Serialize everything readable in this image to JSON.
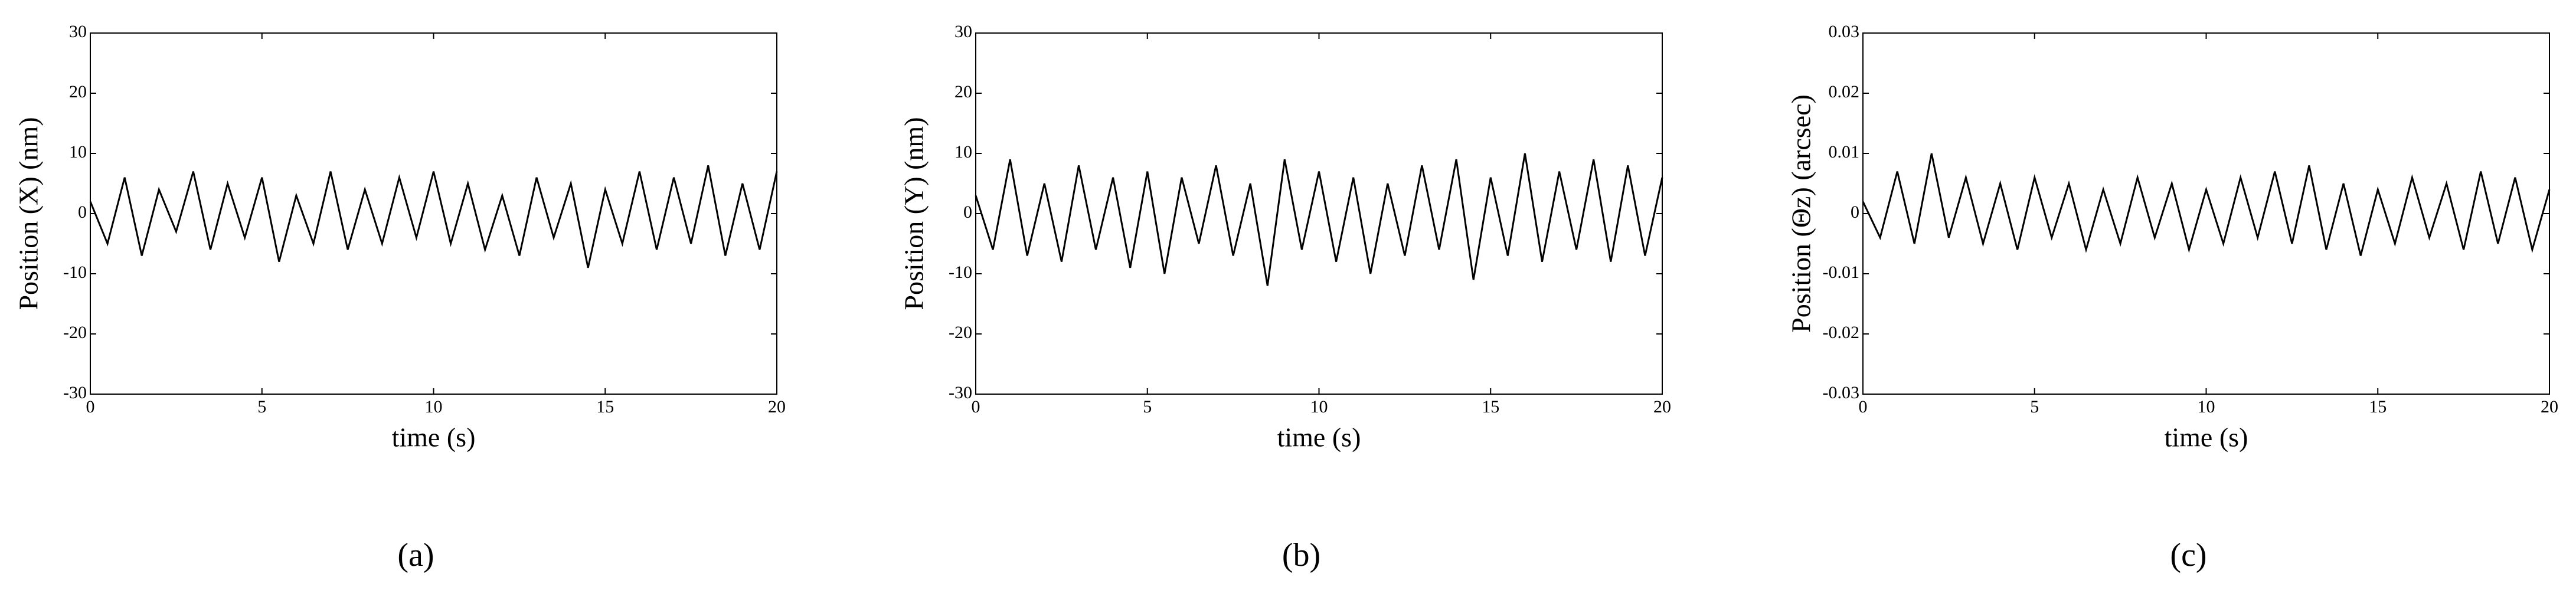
{
  "chart_data": [
    {
      "type": "line",
      "label": "(a)",
      "xlabel": "time (s)",
      "ylabel": "Position (X) (nm)",
      "color": "#000000",
      "xlim": [
        0,
        20
      ],
      "xticks": [
        0,
        5,
        10,
        15,
        20
      ],
      "ylim": [
        -30,
        30
      ],
      "yticks": [
        -30,
        -20,
        -10,
        0,
        10,
        20,
        30
      ],
      "x": [
        0,
        0.5,
        1,
        1.5,
        2,
        2.5,
        3,
        3.5,
        4,
        4.5,
        5,
        5.5,
        6,
        6.5,
        7,
        7.5,
        8,
        8.5,
        9,
        9.5,
        10,
        10.5,
        11,
        11.5,
        12,
        12.5,
        13,
        13.5,
        14,
        14.5,
        15,
        15.5,
        16,
        16.5,
        17,
        17.5,
        18,
        18.5,
        19,
        19.5,
        20
      ],
      "values": [
        2,
        -5,
        6,
        -7,
        4,
        -3,
        7,
        -6,
        5,
        -4,
        6,
        -8,
        3,
        -5,
        7,
        -6,
        4,
        -5,
        6,
        -4,
        7,
        -5,
        5,
        -6,
        3,
        -7,
        6,
        -4,
        5,
        -9,
        4,
        -5,
        7,
        -6,
        6,
        -5,
        8,
        -7,
        5,
        -6,
        7
      ]
    },
    {
      "type": "line",
      "label": "(b)",
      "xlabel": "time (s)",
      "ylabel": "Position (Y) (nm)",
      "color": "#000000",
      "xlim": [
        0,
        20
      ],
      "xticks": [
        0,
        5,
        10,
        15,
        20
      ],
      "ylim": [
        -30,
        30
      ],
      "yticks": [
        -30,
        -20,
        -10,
        0,
        10,
        20,
        30
      ],
      "x": [
        0,
        0.5,
        1,
        1.5,
        2,
        2.5,
        3,
        3.5,
        4,
        4.5,
        5,
        5.5,
        6,
        6.5,
        7,
        7.5,
        8,
        8.5,
        9,
        9.5,
        10,
        10.5,
        11,
        11.5,
        12,
        12.5,
        13,
        13.5,
        14,
        14.5,
        15,
        15.5,
        16,
        16.5,
        17,
        17.5,
        18,
        18.5,
        19,
        19.5,
        20
      ],
      "values": [
        3,
        -6,
        9,
        -7,
        5,
        -8,
        8,
        -6,
        6,
        -9,
        7,
        -10,
        6,
        -5,
        8,
        -7,
        5,
        -12,
        9,
        -6,
        7,
        -8,
        6,
        -10,
        5,
        -7,
        8,
        -6,
        9,
        -11,
        6,
        -7,
        10,
        -8,
        7,
        -6,
        9,
        -8,
        8,
        -7,
        6
      ]
    },
    {
      "type": "line",
      "label": "(c)",
      "xlabel": "time (s)",
      "ylabel": "Position (Θz) (arcsec)",
      "color": "#000000",
      "xlim": [
        0,
        20
      ],
      "xticks": [
        0,
        5,
        10,
        15,
        20
      ],
      "ylim": [
        -0.03,
        0.03
      ],
      "yticks": [
        -0.03,
        -0.02,
        -0.01,
        0,
        0.01,
        0.02,
        0.03
      ],
      "x": [
        0,
        0.5,
        1,
        1.5,
        2,
        2.5,
        3,
        3.5,
        4,
        4.5,
        5,
        5.5,
        6,
        6.5,
        7,
        7.5,
        8,
        8.5,
        9,
        9.5,
        10,
        10.5,
        11,
        11.5,
        12,
        12.5,
        13,
        13.5,
        14,
        14.5,
        15,
        15.5,
        16,
        16.5,
        17,
        17.5,
        18,
        18.5,
        19,
        19.5,
        20
      ],
      "values": [
        0.002,
        -0.004,
        0.007,
        -0.005,
        0.01,
        -0.004,
        0.006,
        -0.005,
        0.005,
        -0.006,
        0.006,
        -0.004,
        0.005,
        -0.006,
        0.004,
        -0.005,
        0.006,
        -0.004,
        0.005,
        -0.006,
        0.004,
        -0.005,
        0.006,
        -0.004,
        0.007,
        -0.005,
        0.008,
        -0.006,
        0.005,
        -0.007,
        0.004,
        -0.005,
        0.006,
        -0.004,
        0.005,
        -0.006,
        0.007,
        -0.005,
        0.006,
        -0.006,
        0.004
      ]
    }
  ]
}
